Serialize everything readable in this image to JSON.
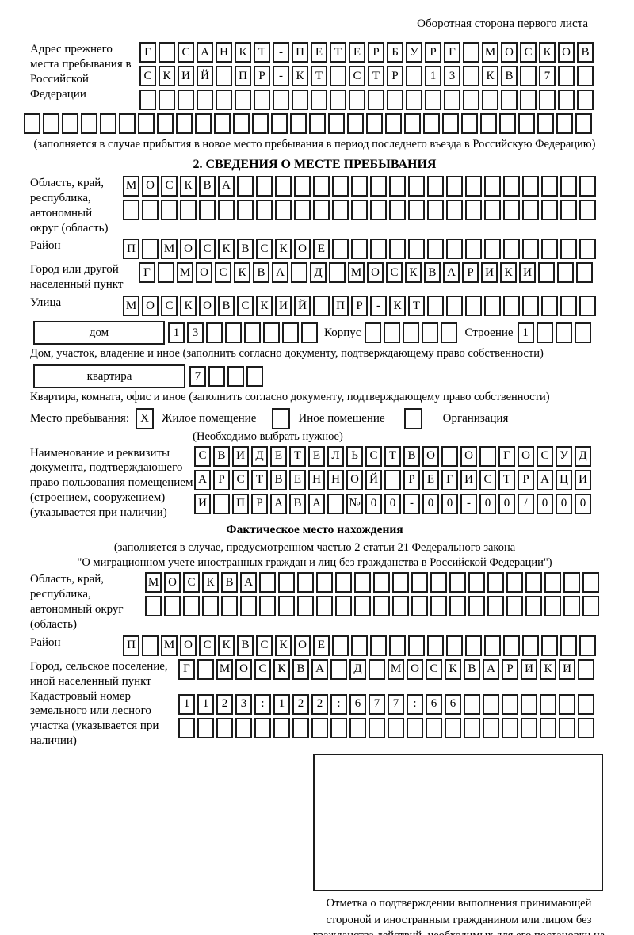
{
  "page": {
    "corner_note": "Оборотная сторона первого листа"
  },
  "prev_address": {
    "label": "Адрес прежнего места пребывания в Российской Федерации",
    "row1": "Г САНКТ-ПЕТЕРБУРГ МОСКОВ",
    "row2": "СКИЙ ПР-КТ СТР 13 КВ 7",
    "row3": "",
    "row4": "",
    "note": "(заполняется в случае прибытия в новое место пребывания в период последнего въезда в Российскую Федерацию)"
  },
  "section2": {
    "title": "2. СВЕДЕНИЯ О МЕСТЕ ПРЕБЫВАНИЯ",
    "region": {
      "label": "Область, край, республика, автономный округ (область)",
      "row1": "МОСКВА",
      "row2": ""
    },
    "district": {
      "label": "Район",
      "row": "П МОСКВСКОЕ"
    },
    "city": {
      "label": "Город или другой населенный пункт",
      "row": "Г МОСКВА Д МОСКВАРИКИ"
    },
    "street": {
      "label": "Улица",
      "row": "МОСКОВСКИЙ ПР-КТ"
    },
    "house": {
      "box_label": "дом",
      "cells": "13",
      "korpus_label": "Корпус",
      "korpus_cells": "",
      "stroenie_label": "Строение",
      "stroenie_cells": "1",
      "note": "Дом, участок, владение и иное (заполнить согласно документу, подтверждающему право собственности)"
    },
    "apartment": {
      "box_label": "квартира",
      "cells": "7",
      "note": "Квартира, комната, офис и иное (заполнить согласно документу, подтверждающему право собственности)"
    },
    "stay_type": {
      "label": "Место пребывания:",
      "options": [
        {
          "mark": "X",
          "label": "Жилое помещение"
        },
        {
          "mark": "",
          "label": "Иное помещение"
        },
        {
          "mark": "",
          "label": "Организация"
        }
      ],
      "note": "(Необходимо выбрать нужное)"
    },
    "document": {
      "label": "Наименование и реквизиты документа, подтверждающего право пользования помещением (строением, сооружением) (указывается при наличии)",
      "row1": "СВИДЕТЕЛЬСТВО О ГОСУД",
      "row2": "АРСТВЕННОЙ РЕГИСТРАЦИ",
      "row3": "И ПРАВА №00-00-00/000"
    }
  },
  "actual_location": {
    "title": "Фактическое место нахождения",
    "note_line1": "(заполняется в случае, предусмотренном частью 2 статьи 21 Федерального закона",
    "note_line2": "\"О миграционном учете иностранных граждан и лиц без гражданства в Российской Федерации\")",
    "region": {
      "label": "Область, край, республика, автономный округ (область)",
      "row1": "МОСКВА",
      "row2": ""
    },
    "district": {
      "label": "Район",
      "row": "П МОСКВСКОЕ"
    },
    "city": {
      "label": "Город, сельское поселение, иной населенный пункт",
      "row": "Г МОСКВА Д МОСКВАРИКИ"
    },
    "cadastre": {
      "label": "Кадастровый номер земельного или лесного участка (указывается при наличии)",
      "row1": "1123:122:677:66",
      "row2": ""
    }
  },
  "confirmation": {
    "caption": "Отметка о подтверждении выполнения принимающей стороной и иностранным гражданином или лицом без гражданства действий, необходимых для его постановки на учет по месту пребывания"
  }
}
